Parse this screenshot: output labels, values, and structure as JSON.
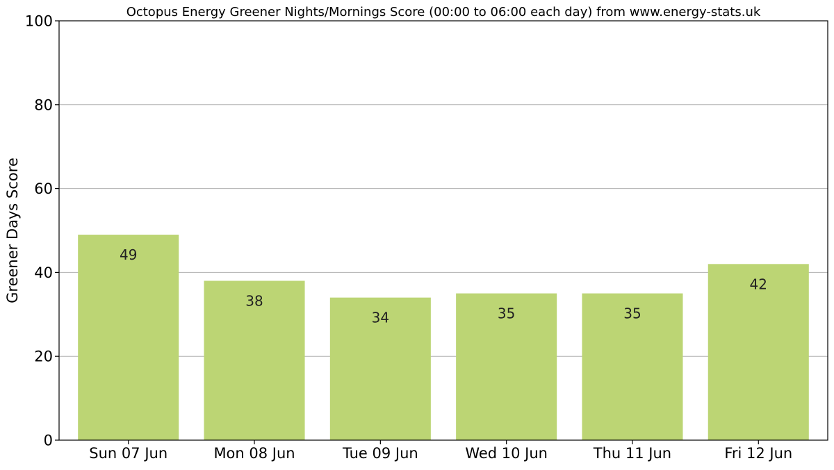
{
  "chart_data": {
    "type": "bar",
    "title": "Octopus Energy Greener Nights/Mornings Score (00:00 to 06:00 each day) from www.energy-stats.uk",
    "xlabel": "",
    "ylabel": "Greener Days Score",
    "categories": [
      "Sun 07 Jun",
      "Mon 08 Jun",
      "Tue 09 Jun",
      "Wed 10 Jun",
      "Thu 11 Jun",
      "Fri 12 Jun"
    ],
    "values": [
      49,
      38,
      34,
      35,
      35,
      42
    ],
    "value_labels": [
      "49",
      "38",
      "34",
      "35",
      "35",
      "42"
    ],
    "ylim": [
      0,
      100
    ],
    "yticks": [
      0,
      20,
      40,
      60,
      80,
      100
    ],
    "ytick_labels": [
      "0",
      "20",
      "40",
      "60",
      "80",
      "100"
    ],
    "grid": "horizontal",
    "legend": "none",
    "bar_color": "#bcd574",
    "grid_color": "#b0b0b0"
  }
}
